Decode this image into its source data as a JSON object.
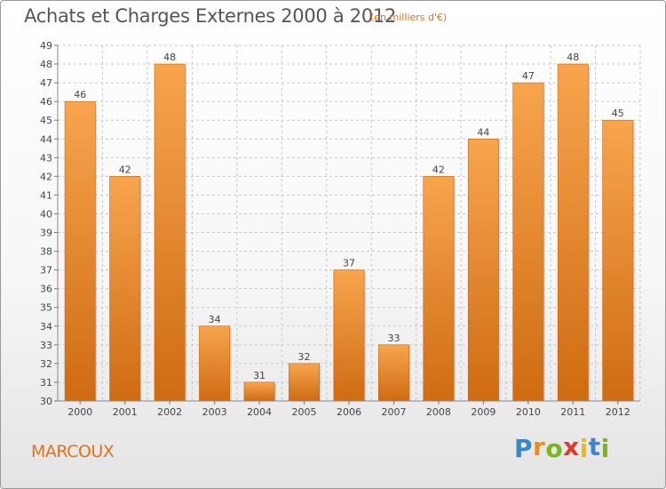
{
  "header": {
    "title": "Achats et Charges Externes 2000 à 2012",
    "subtitle": "(en milliers d'€)"
  },
  "footer": {
    "commune": "MARCOUX",
    "logo_letters": [
      {
        "ch": "P",
        "color": "#3a86c8"
      },
      {
        "ch": "r",
        "color": "#f08a1c"
      },
      {
        "ch": "o",
        "color": "#7ab51d"
      },
      {
        "ch": "x",
        "color": "#e23a2a"
      },
      {
        "ch": "i",
        "color": "#f0b61c"
      },
      {
        "ch": "t",
        "color": "#3a86c8"
      },
      {
        "ch": "i",
        "color": "#7ab51d"
      }
    ]
  },
  "chart_data": {
    "type": "bar",
    "title": "Achats et Charges Externes 2000 à 2012",
    "subtitle": "(en milliers d'€)",
    "categories": [
      "2000",
      "2001",
      "2002",
      "2003",
      "2004",
      "2005",
      "2006",
      "2007",
      "2008",
      "2009",
      "2010",
      "2011",
      "2012"
    ],
    "values": [
      46,
      42,
      48,
      34,
      31,
      32,
      37,
      33,
      42,
      44,
      47,
      48,
      45
    ],
    "ylim": [
      30,
      49
    ],
    "yticks": [
      30,
      31,
      32,
      33,
      34,
      35,
      36,
      37,
      38,
      39,
      40,
      41,
      42,
      43,
      44,
      45,
      46,
      47,
      48,
      49
    ],
    "grid": true,
    "colors": {
      "bar_top": "#f7a54e",
      "bar_bottom": "#cf6b12",
      "label": "#444444",
      "grid": "#c8c8c8"
    }
  }
}
